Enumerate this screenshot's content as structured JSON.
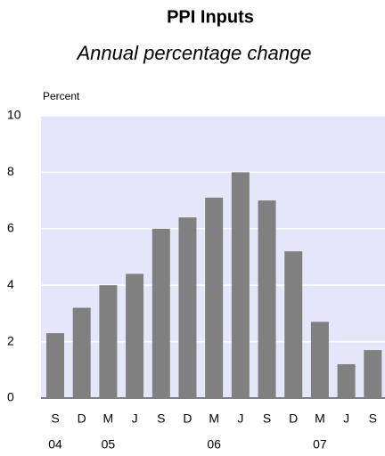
{
  "chart_data": {
    "type": "bar",
    "title": "PPI Inputs",
    "subtitle": "Annual percentage change",
    "y_axis_label": "Percent",
    "categories": [
      "S",
      "D",
      "M",
      "J",
      "S",
      "D",
      "M",
      "J",
      "S",
      "D",
      "M",
      "J",
      "S"
    ],
    "year_labels": [
      "04",
      null,
      "05",
      null,
      null,
      null,
      "06",
      null,
      null,
      null,
      "07",
      null,
      null
    ],
    "values": [
      2.3,
      3.2,
      4.0,
      4.4,
      6.0,
      6.4,
      7.1,
      8.0,
      7.0,
      5.2,
      2.7,
      1.2,
      1.7
    ],
    "color": "#808080",
    "background": "#e6e6fa",
    "ylim": [
      0,
      10
    ],
    "yticks": [
      0,
      2,
      4,
      6,
      8,
      10
    ],
    "grid": true
  }
}
